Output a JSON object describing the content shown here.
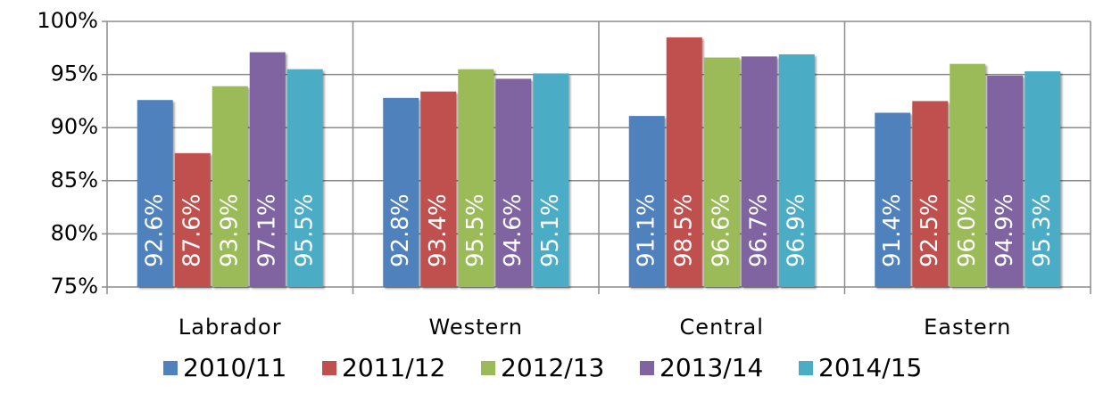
{
  "chart_data": {
    "type": "bar",
    "categories": [
      "Labrador",
      "Western",
      "Central",
      "Eastern"
    ],
    "series": [
      {
        "name": "2010/11",
        "color": "#4f81bd",
        "values": [
          92.6,
          92.8,
          91.1,
          91.4
        ],
        "value_labels": [
          "92.6%",
          "92.8%",
          "91.1%",
          "91.4%"
        ]
      },
      {
        "name": "2011/12",
        "color": "#c0504d",
        "values": [
          87.6,
          93.4,
          98.5,
          92.5
        ],
        "value_labels": [
          "87.6%",
          "93.4%",
          "98.5%",
          "92.5%"
        ]
      },
      {
        "name": "2012/13",
        "color": "#9bbb59",
        "values": [
          93.9,
          95.5,
          96.6,
          96.0
        ],
        "value_labels": [
          "93.9%",
          "95.5%",
          "96.6%",
          "96.0%"
        ]
      },
      {
        "name": "2013/14",
        "color": "#8064a2",
        "values": [
          97.1,
          94.6,
          96.7,
          94.9
        ],
        "value_labels": [
          "97.1%",
          "94.6%",
          "96.7%",
          "94.9%"
        ]
      },
      {
        "name": "2014/15",
        "color": "#4bacc6",
        "values": [
          95.5,
          95.1,
          96.9,
          95.3
        ],
        "value_labels": [
          "95.5%",
          "95.1%",
          "96.9%",
          "95.3%"
        ]
      }
    ],
    "ylim": [
      75,
      100
    ],
    "yticks": [
      {
        "value": 75,
        "label": "75%"
      },
      {
        "value": 80,
        "label": "80%"
      },
      {
        "value": 85,
        "label": "85%"
      },
      {
        "value": 90,
        "label": "90%"
      },
      {
        "value": 95,
        "label": "95%"
      },
      {
        "value": 100,
        "label": "100%"
      }
    ],
    "grid": true,
    "legend": "bottom"
  }
}
